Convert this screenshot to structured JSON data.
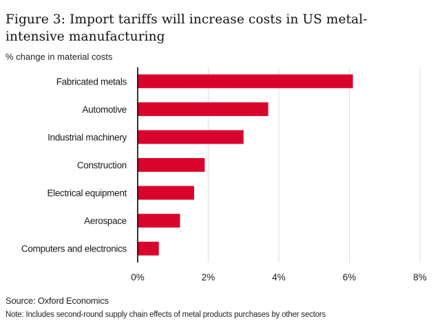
{
  "title": "Figure 3: Import tariffs will increase costs in US metal-intensive manufacturing",
  "subtitle": "% change in material costs",
  "footer": {
    "source": "Source: Oxford Economics",
    "note": "Note: Includes second-round supply chain effects of metal products purchases by other sectors"
  },
  "colors": {
    "bar": "#d9042b",
    "axis": "#000000",
    "grid": "#dcdcdc"
  },
  "chart_data": {
    "type": "bar",
    "orientation": "horizontal",
    "categories": [
      "Fabricated metals",
      "Automotive",
      "Industrial machinery",
      "Construction",
      "Electrical equipment",
      "Aerospace",
      "Computers and electronics"
    ],
    "values": [
      6.1,
      3.7,
      3.0,
      1.9,
      1.6,
      1.2,
      0.6
    ],
    "xlim": [
      0,
      8
    ],
    "xticks": [
      0,
      2,
      4,
      6,
      8
    ],
    "xtick_labels": [
      "0%",
      "2%",
      "4%",
      "6%",
      "8%"
    ],
    "grid": true
  }
}
